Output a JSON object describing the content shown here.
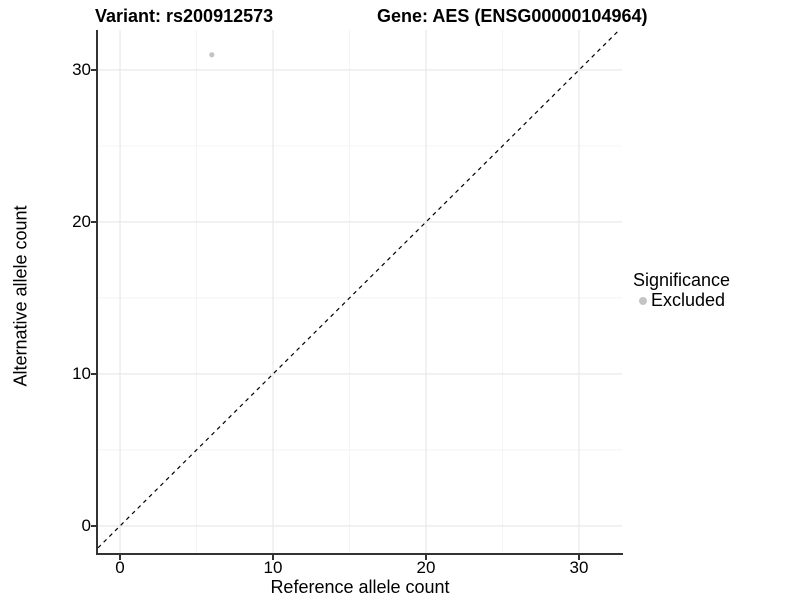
{
  "titles": {
    "variant": "Variant: rs200912573",
    "gene": "Gene: AES (ENSG00000104964)"
  },
  "axes": {
    "x": {
      "label": "Reference allele count",
      "tick_labels": [
        "0",
        "10",
        "20",
        "30"
      ],
      "tick_values": [
        0,
        10,
        20,
        30
      ],
      "minor_values": [
        5,
        15,
        25
      ],
      "range": [
        -1.44,
        32.81
      ]
    },
    "y": {
      "label": "Alternative allele count",
      "tick_labels": [
        "0",
        "10",
        "20",
        "30"
      ],
      "tick_values": [
        0,
        10,
        20,
        30
      ],
      "minor_values": [
        5,
        15,
        25
      ],
      "range": [
        -1.78,
        32.63
      ]
    }
  },
  "legend": {
    "title": "Significance",
    "items": [
      {
        "label": "Excluded",
        "color": "#c4c4c4"
      }
    ]
  },
  "colors": {
    "background": "#ffffff",
    "grid_major": "#e6e6e6",
    "grid_minor": "#f2f2f2",
    "axis": "#333333",
    "identity_line": "#000000",
    "point": "#c4c4c4"
  },
  "chart_data": {
    "type": "scatter",
    "title_left": "Variant: rs200912573",
    "title_right": "Gene: AES (ENSG00000104964)",
    "xlabel": "Reference allele count",
    "ylabel": "Alternative allele count",
    "xlim": [
      -1.44,
      32.81
    ],
    "ylim": [
      -1.78,
      32.63
    ],
    "x_ticks": [
      0,
      10,
      20,
      30
    ],
    "y_ticks": [
      0,
      10,
      20,
      30
    ],
    "grid": "major and minor, light gray on white",
    "legend_position": "right",
    "series": [
      {
        "name": "Excluded",
        "color": "#c4c4c4",
        "point_radius": 2.6,
        "points": [
          {
            "x": 6,
            "y": 31
          }
        ]
      }
    ],
    "identity_line": {
      "type": "abline y=x",
      "style": "dashed",
      "color": "#000000",
      "from": -1.44,
      "to": 32.63
    }
  }
}
